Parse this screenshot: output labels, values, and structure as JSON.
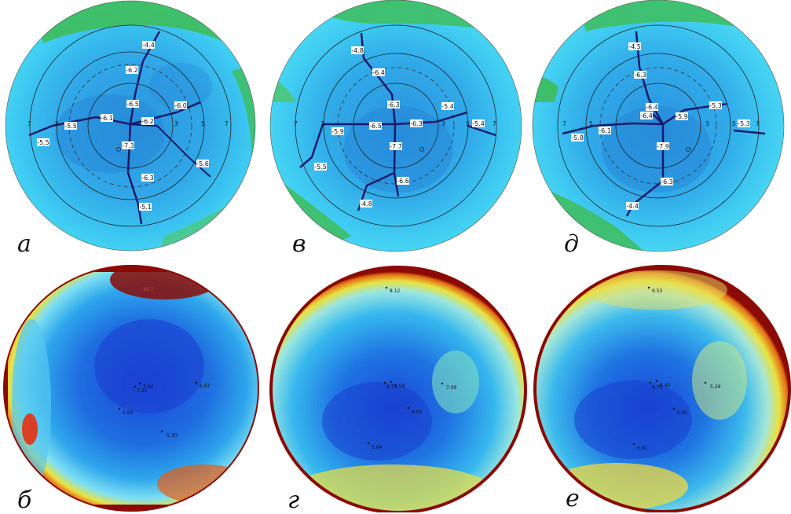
{
  "figure": {
    "panels": [
      {
        "letter": "а",
        "type": "radial-power-map",
        "outer_ring_labels": [
          "7",
          "7"
        ],
        "inner_ring_labels": [
          "5",
          "5"
        ],
        "mid_label": "3",
        "values": [
          "-4.4",
          "-6.2",
          "-6.5",
          "-6.0",
          "-6.1",
          "-6.2",
          "-5.5",
          "-5.5",
          "-7.3",
          "-6.3",
          "-5.1",
          "-5.6"
        ]
      },
      {
        "letter": "б",
        "type": "height-map",
        "values": [
          "7.02",
          "7.21",
          "6.87",
          "5.93",
          "5.30",
          "10.7"
        ]
      },
      {
        "letter": "в",
        "type": "radial-power-map",
        "outer_ring_labels": [
          "7",
          "7"
        ],
        "inner_ring_labels": [
          "5",
          "5"
        ],
        "mid_label": "3",
        "values": [
          "-4.8",
          "-6.4",
          "-6.3",
          "-5.4",
          "-5.4",
          "-5.9",
          "-6.5",
          "-6.3",
          "-7.7",
          "-5.5",
          "-6.6",
          "-4.8"
        ]
      },
      {
        "letter": "г",
        "type": "height-map",
        "values": [
          "8.12",
          "6.77",
          "6.59",
          "7.09",
          "6.05",
          "5.84"
        ]
      },
      {
        "letter": "д",
        "type": "radial-power-map",
        "outer_ring_labels": [
          "7",
          "7"
        ],
        "inner_ring_labels": [
          "5",
          "5"
        ],
        "mid_label": "3",
        "values": [
          "-4.5",
          "-6.3",
          "-6.4",
          "-6.4",
          "-5.3",
          "-5.9",
          "-6.1",
          "-5.8",
          "-5.3",
          "-7.9",
          "-6.3",
          "-4.4"
        ]
      },
      {
        "letter": "е",
        "type": "height-map",
        "values": [
          "9.53",
          "6.77",
          "6.43",
          "5.29",
          "5.85",
          "5.91"
        ]
      }
    ],
    "colors": {
      "map_base": "#33b4ec",
      "map_light": "#45d3f5",
      "map_dark": "#2489da",
      "map_green": "#3ebd5a",
      "heat_red": "#8a0a05",
      "heat_blue": "#1a45d6",
      "heat_yellow": "#e8e240",
      "radial_line": "#1a1a6a"
    }
  }
}
